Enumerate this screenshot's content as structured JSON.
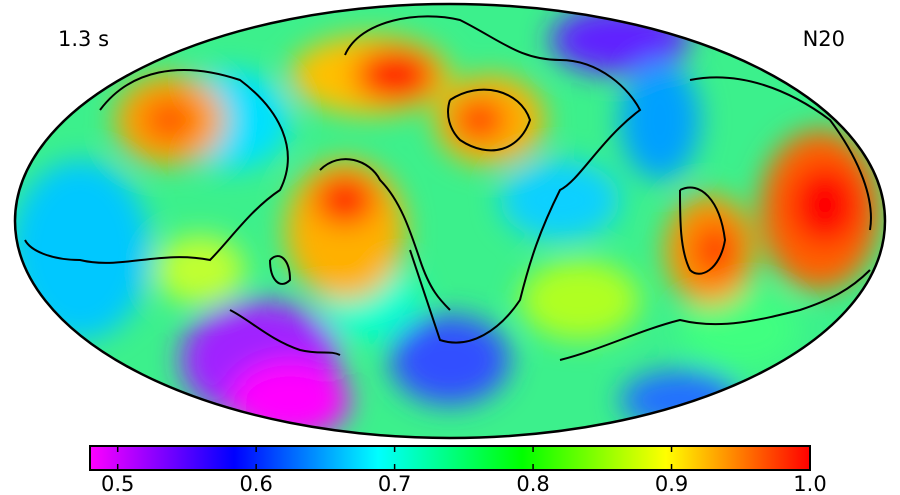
{
  "map": {
    "time_label": "1.3 s",
    "model_label": "N20"
  },
  "colorbar": {
    "lim": [
      0.48,
      1.0
    ],
    "ticks": [
      0.5,
      0.6,
      0.7,
      0.8,
      0.9,
      {
        "value": 1.0,
        "label": "1.0"
      }
    ],
    "colors": [
      "#ff00ff",
      "#0000ff",
      "#00ffff",
      "#00ff00",
      "#ffff00",
      "#ff0000"
    ]
  }
}
